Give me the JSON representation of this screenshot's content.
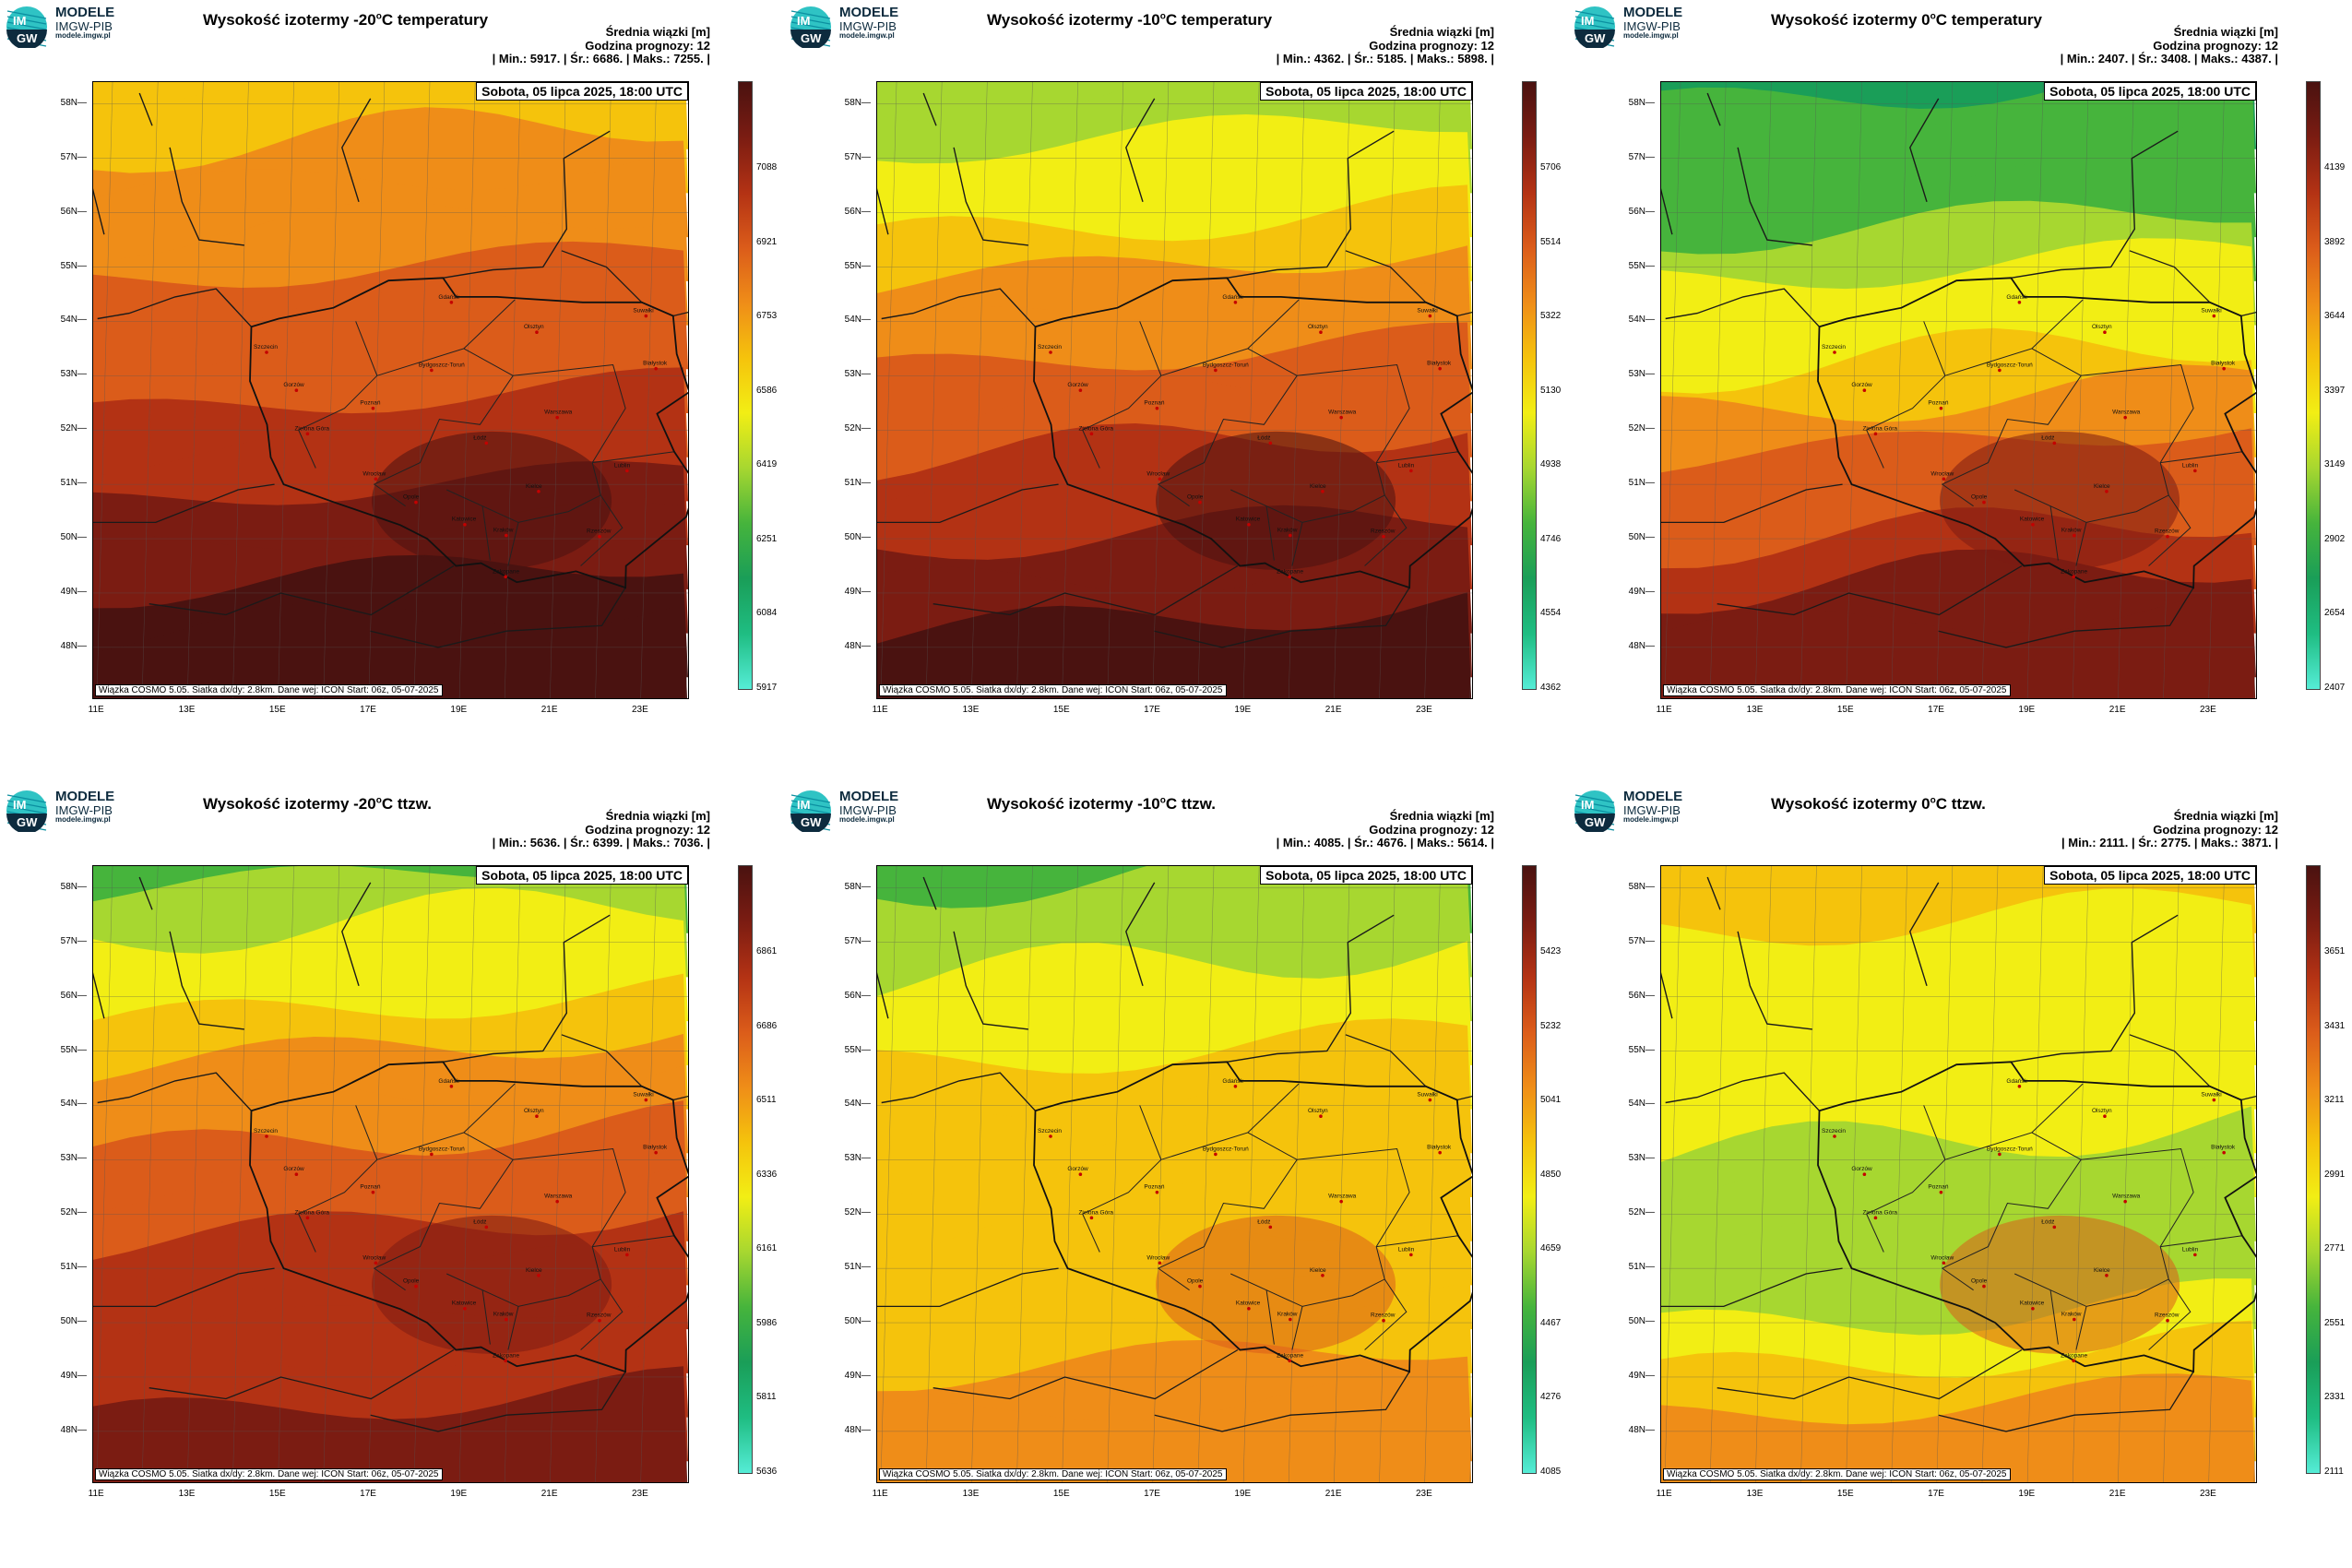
{
  "brand": {
    "line1": "MODELE",
    "line2": "IMGW-PIB",
    "line3": "modele.imgw.pl",
    "logo_text_top": "IM",
    "logo_text_bottom": "GW"
  },
  "common": {
    "subtitle": "Średnia wiązki [m]",
    "forecast_hour": "Godzina prognozy: 12",
    "date": "Sobota, 05 lipca 2025, 18:00 UTC",
    "footer": "Wiązka COSMO 5.05. Siatka dx/dy: 2.8km. Dane wej: ICON Start: 06z, 05-07-2025",
    "lat_labels": [
      "58N",
      "57N",
      "56N",
      "55N",
      "54N",
      "53N",
      "52N",
      "51N",
      "50N",
      "49N",
      "48N"
    ],
    "lon_labels": [
      "11E",
      "13E",
      "15E",
      "17E",
      "19E",
      "21E",
      "23E"
    ],
    "cities": [
      {
        "name": "Gdańsk",
        "lon": 18.6,
        "lat": 54.35
      },
      {
        "name": "Olsztyn",
        "lon": 20.5,
        "lat": 53.8
      },
      {
        "name": "Suwałki",
        "lon": 22.9,
        "lat": 54.1
      },
      {
        "name": "Białystok",
        "lon": 23.15,
        "lat": 53.13
      },
      {
        "name": "Szczecin",
        "lon": 14.55,
        "lat": 53.43
      },
      {
        "name": "Bydgoszcz-Toruń",
        "lon": 18.2,
        "lat": 53.1
      },
      {
        "name": "Gorzów",
        "lon": 15.23,
        "lat": 52.73
      },
      {
        "name": "Poznań",
        "lon": 16.93,
        "lat": 52.4
      },
      {
        "name": "Warszawa",
        "lon": 21.0,
        "lat": 52.23
      },
      {
        "name": "Zielona Góra",
        "lon": 15.5,
        "lat": 51.93
      },
      {
        "name": "Łódź",
        "lon": 19.45,
        "lat": 51.76
      },
      {
        "name": "Lublin",
        "lon": 22.57,
        "lat": 51.25
      },
      {
        "name": "Wrocław",
        "lon": 17.03,
        "lat": 51.1
      },
      {
        "name": "Kielce",
        "lon": 20.63,
        "lat": 50.87
      },
      {
        "name": "Opole",
        "lon": 17.93,
        "lat": 50.67
      },
      {
        "name": "Rzeszów",
        "lon": 22.0,
        "lat": 50.04
      },
      {
        "name": "Katowice",
        "lon": 19.02,
        "lat": 50.26
      },
      {
        "name": "Kraków",
        "lon": 19.94,
        "lat": 50.06
      },
      {
        "name": "Zakopane",
        "lon": 19.95,
        "lat": 49.3
      }
    ]
  },
  "colors": {
    "scale": [
      "#55ecd6",
      "#1fbd82",
      "#1a9e58",
      "#46b43c",
      "#a7d730",
      "#f2ee14",
      "#f5c30c",
      "#ef8d18",
      "#db5c1a",
      "#b33214",
      "#7b1c12",
      "#4a1210"
    ]
  },
  "panels": [
    {
      "title_pre": "Wysokość izotermy -20",
      "title_sup": "o",
      "title_post": "C temperatury",
      "stats": "| Min.:   5917. | Śr.:   6686. | Maks.:   7255. |",
      "colorbar_ticks": [
        "7088",
        "6921",
        "6753",
        "6586",
        "6419",
        "6251",
        "6084",
        "5917"
      ],
      "field_levels": [
        0.54,
        0.62,
        0.72,
        0.84,
        0.97
      ],
      "hot_center": 0.97
    },
    {
      "title_pre": "Wysokość izotermy -10",
      "title_sup": "o",
      "title_post": "C temperatury",
      "stats": "| Min.:   4362. | Śr.:   5185. | Maks.:   5898. |",
      "colorbar_ticks": [
        "5706",
        "5514",
        "5322",
        "5130",
        "4938",
        "4746",
        "4554",
        "4362"
      ],
      "field_levels": [
        0.36,
        0.5,
        0.66,
        0.8,
        0.93
      ],
      "hot_center": 0.93
    },
    {
      "title_pre": "Wysokość izotermy 0",
      "title_sup": "o",
      "title_post": "C temperatury",
      "stats": "| Min.:   2407. | Śr.:   3408. | Maks.:   4387. |",
      "colorbar_ticks": [
        "4139",
        "3892",
        "3644",
        "3397",
        "3149",
        "2902",
        "2654",
        "2407"
      ],
      "field_levels": [
        0.24,
        0.33,
        0.52,
        0.72,
        0.9
      ],
      "hot_center": 0.88
    },
    {
      "title_pre": "Wysokość izotermy -20",
      "title_sup": "o",
      "title_post": "C ttzw.",
      "stats": "| Min.:   5636. | Śr.:   6399. | Maks.:   7036. |",
      "colorbar_ticks": [
        "6861",
        "6686",
        "6511",
        "6336",
        "6161",
        "5986",
        "5811",
        "5636"
      ],
      "field_levels": [
        0.3,
        0.5,
        0.66,
        0.78,
        0.84
      ],
      "hot_center": 0.86
    },
    {
      "title_pre": "Wysokość izotermy -10",
      "title_sup": "o",
      "title_post": "C ttzw.",
      "stats": "| Min.:   4085. | Śr.:   4676. | Maks.:   5614. |",
      "colorbar_ticks": [
        "5423",
        "5232",
        "5041",
        "4850",
        "4659",
        "4467",
        "4276",
        "4085"
      ],
      "field_levels": [
        0.3,
        0.46,
        0.56,
        0.5,
        0.66
      ],
      "hot_center": 0.72
    },
    {
      "title_pre": "Wysokość izotermy 0",
      "title_sup": "o",
      "title_post": "C ttzw.",
      "stats": "| Min.:   2111. | Śr.:   2775. | Maks.:   3871. |",
      "colorbar_ticks": [
        "3651",
        "3431",
        "3211",
        "2991",
        "2771",
        "2551",
        "2331",
        "2111"
      ],
      "field_levels": [
        0.52,
        0.46,
        0.42,
        0.36,
        0.62
      ],
      "hot_center": 0.72
    }
  ]
}
